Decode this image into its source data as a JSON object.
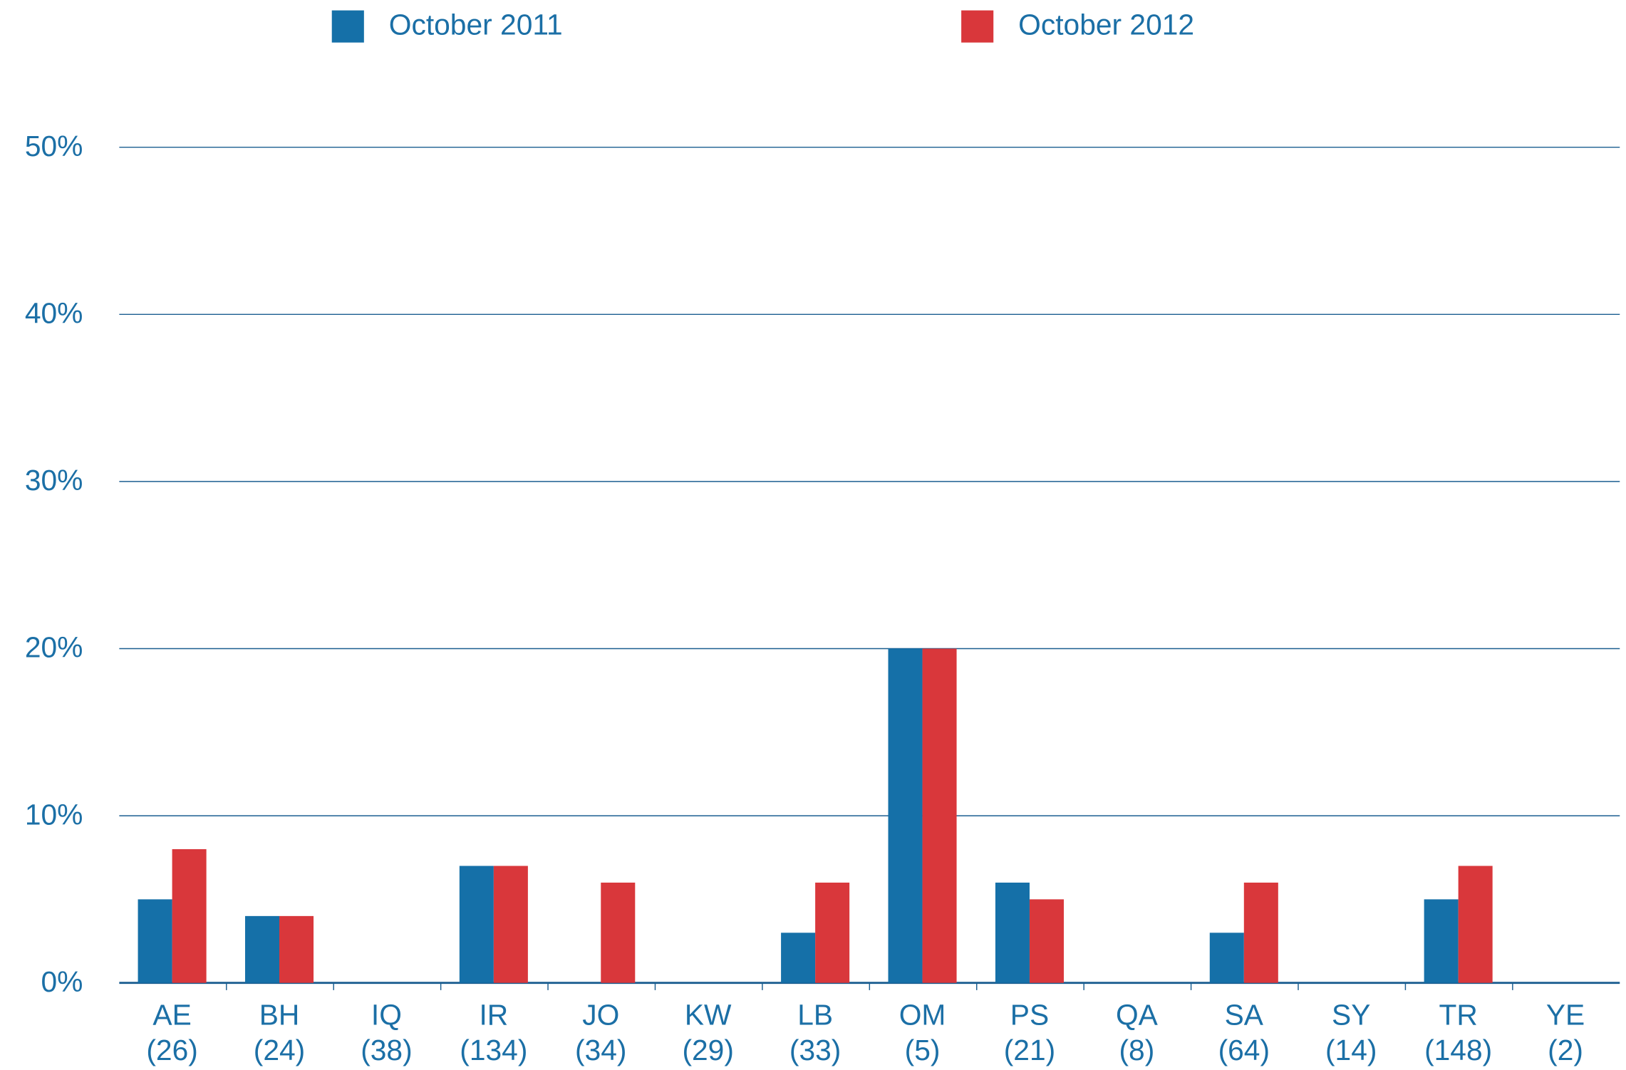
{
  "chart_data": {
    "type": "bar",
    "categories": [
      [
        "AE",
        "(26)"
      ],
      [
        "BH",
        "(24)"
      ],
      [
        "IQ",
        "(38)"
      ],
      [
        "IR",
        "(134)"
      ],
      [
        "JO",
        "(34)"
      ],
      [
        "KW",
        "(29)"
      ],
      [
        "LB",
        "(33)"
      ],
      [
        "OM",
        "(5)"
      ],
      [
        "PS",
        "(21)"
      ],
      [
        "QA",
        "(8)"
      ],
      [
        "SA",
        "(64)"
      ],
      [
        "SY",
        "(14)"
      ],
      [
        "TR",
        "(148)"
      ],
      [
        "YE",
        "(2)"
      ]
    ],
    "series": [
      {
        "name": "October 2011",
        "color": "#1570a8",
        "values": [
          5,
          4,
          0,
          7,
          0,
          0,
          3,
          20,
          6,
          0,
          3,
          0,
          5,
          0
        ]
      },
      {
        "name": "October 2012",
        "color": "#d9373b",
        "values": [
          8,
          4,
          0,
          7,
          6,
          0,
          6,
          20,
          5,
          0,
          6,
          0,
          7,
          0
        ]
      }
    ],
    "ylim": [
      0,
      50
    ],
    "yticks": [
      {
        "value": 0,
        "label": "0%"
      },
      {
        "value": 10,
        "label": "10%"
      },
      {
        "value": 20,
        "label": "20%"
      },
      {
        "value": 30,
        "label": "30%"
      },
      {
        "value": 40,
        "label": "40%"
      },
      {
        "value": 50,
        "label": "50%"
      }
    ],
    "grid": true,
    "legend": "top"
  }
}
